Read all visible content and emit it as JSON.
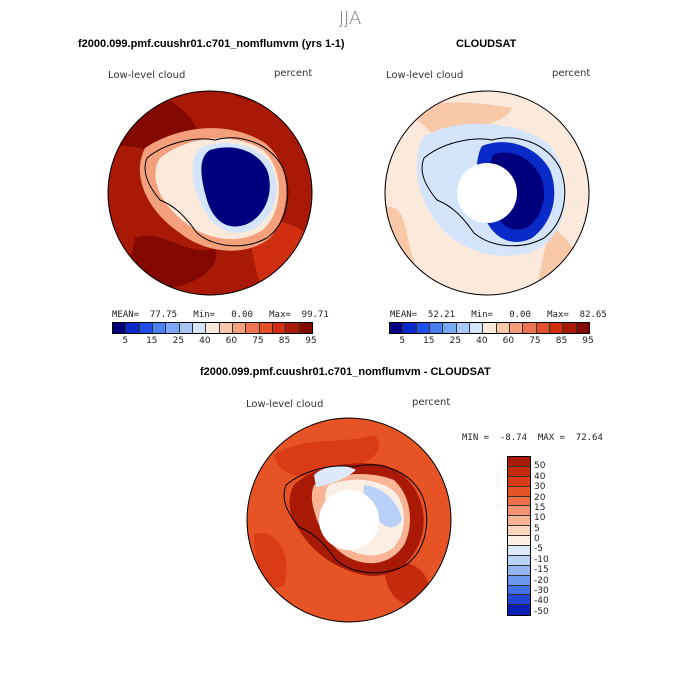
{
  "figure": {
    "title": "JJA"
  },
  "chart_data": [
    {
      "type": "heatmap",
      "title": "f2000.099.pmf.cuushr01.c701_nomflumvm (yrs 1-1)",
      "variable": "Low-level cloud",
      "units": "percent",
      "stats": {
        "mean": "77.75",
        "min": "0.00",
        "max": "99.71"
      },
      "stats_text": "MEAN=  77.75   Min=   0.00   Max=  99.71",
      "colorbar": {
        "tick_labels": [
          "5",
          "15",
          "25",
          "40",
          "60",
          "75",
          "85",
          "95"
        ],
        "colors": [
          "#00007f",
          "#0a2ac8",
          "#1f4fe8",
          "#4a7ff0",
          "#7aa8f4",
          "#a9c8f7",
          "#d4e4fb",
          "#fbe9dc",
          "#f8c8a8",
          "#f4a07c",
          "#ee7552",
          "#e4502c",
          "#cf2f10",
          "#a81a06",
          "#820800"
        ]
      }
    },
    {
      "type": "heatmap",
      "title": "CLOUDSAT",
      "variable": "Low-level cloud",
      "units": "percent",
      "stats": {
        "mean": "52.21",
        "min": "0.00",
        "max": "82.65"
      },
      "stats_text": "MEAN=  52.21   Min=   0.00   Max=  82.65",
      "colorbar": {
        "tick_labels": [
          "5",
          "15",
          "25",
          "40",
          "60",
          "75",
          "85",
          "95"
        ],
        "colors": [
          "#00007f",
          "#0a2ac8",
          "#1f4fe8",
          "#4a7ff0",
          "#7aa8f4",
          "#a9c8f7",
          "#d4e4fb",
          "#fbe9dc",
          "#f8c8a8",
          "#f4a07c",
          "#ee7552",
          "#e4502c",
          "#cf2f10",
          "#a81a06",
          "#820800"
        ]
      }
    },
    {
      "type": "heatmap",
      "title": "f2000.099.pmf.cuushr01.c701_nomflumvm - CLOUDSAT",
      "variable": "Low-level cloud",
      "units": "percent",
      "stats": {
        "min": "-8.74",
        "max": "72.64"
      },
      "stats_text": "MIN =  -8.74  MAX =  72.64",
      "colorbar": {
        "tick_labels": [
          "50",
          "40",
          "30",
          "20",
          "15",
          "10",
          "5",
          "0",
          "-5",
          "-10",
          "-15",
          "-20",
          "-30",
          "-40",
          "-50"
        ],
        "colors": [
          "#a81a06",
          "#c42a0c",
          "#d93b16",
          "#e65426",
          "#ee7046",
          "#f59372",
          "#f8b494",
          "#fad6c0",
          "#fbeee4",
          "#dde9fa",
          "#b9d1f6",
          "#93b6f2",
          "#6b96ee",
          "#4470e6",
          "#2046d8",
          "#0a1fb4"
        ]
      }
    }
  ]
}
